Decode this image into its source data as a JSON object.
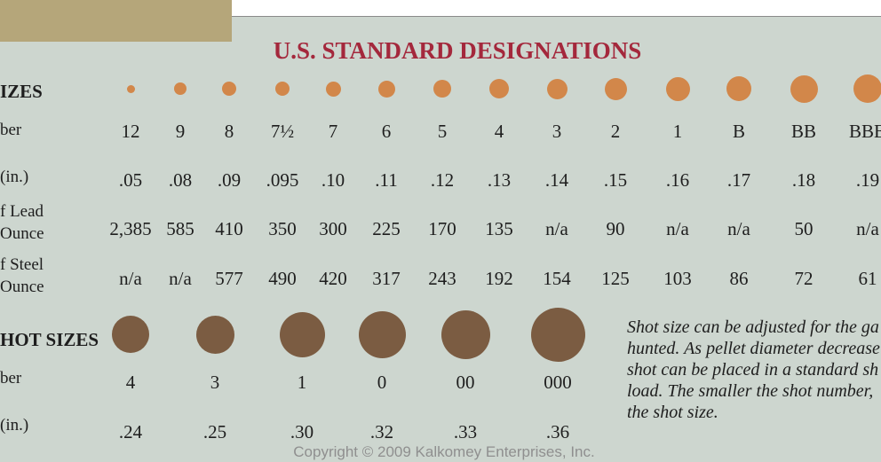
{
  "title": "U.S. STANDARD DESIGNATIONS",
  "lead_shot": {
    "heading": "IZES",
    "labels": {
      "number": "ber",
      "diameter": "(in.)",
      "lead_line1": "f Lead",
      "lead_line2": "Ounce",
      "steel_line1": "f Steel",
      "steel_line2": "Ounce"
    },
    "columns": [
      {
        "number": "12",
        "diameter": ".05",
        "lead": "2,385",
        "steel": "n/a"
      },
      {
        "number": "9",
        "diameter": ".08",
        "lead": "585",
        "steel": "n/a"
      },
      {
        "number": "8",
        "diameter": ".09",
        "lead": "410",
        "steel": "577"
      },
      {
        "number": "7½",
        "diameter": ".095",
        "lead": "350",
        "steel": "490"
      },
      {
        "number": "7",
        "diameter": ".10",
        "lead": "300",
        "steel": "420"
      },
      {
        "number": "6",
        "diameter": ".11",
        "lead": "225",
        "steel": "317"
      },
      {
        "number": "5",
        "diameter": ".12",
        "lead": "170",
        "steel": "243"
      },
      {
        "number": "4",
        "diameter": ".13",
        "lead": "135",
        "steel": "192"
      },
      {
        "number": "3",
        "diameter": ".14",
        "lead": "n/a",
        "steel": "154"
      },
      {
        "number": "2",
        "diameter": ".15",
        "lead": "90",
        "steel": "125"
      },
      {
        "number": "1",
        "diameter": ".16",
        "lead": "n/a",
        "steel": "103"
      },
      {
        "number": "B",
        "diameter": ".17",
        "lead": "n/a",
        "steel": "86"
      },
      {
        "number": "BB",
        "diameter": ".18",
        "lead": "50",
        "steel": "72"
      },
      {
        "number": "BBB",
        "diameter": ".19",
        "lead": "n/a",
        "steel": "61"
      }
    ]
  },
  "buckshot": {
    "heading": "HOT SIZES",
    "labels": {
      "number": "ber",
      "diameter": "(in.)"
    },
    "columns": [
      {
        "number": "4",
        "diameter": ".24"
      },
      {
        "number": "3",
        "diameter": ".25"
      },
      {
        "number": "1",
        "diameter": ".30"
      },
      {
        "number": "0",
        "diameter": ".32"
      },
      {
        "number": "00",
        "diameter": ".33"
      },
      {
        "number": "000",
        "diameter": ".36"
      }
    ]
  },
  "note_lines": [
    "Shot size can be adjusted for the ga",
    "hunted. As pellet diameter decrease",
    "shot can be placed in a standard sh",
    "load. The smaller the shot number,",
    "the shot size."
  ],
  "copyright": "Copyright © 2009 Kalkomey Enterprises, Inc.",
  "colors": {
    "background": "#cdd6cf",
    "title": "#a4283c",
    "lead_pellet": "#d2874a",
    "buckshot_pellet": "#7b5c42",
    "header_tab": "#b5a67a"
  }
}
